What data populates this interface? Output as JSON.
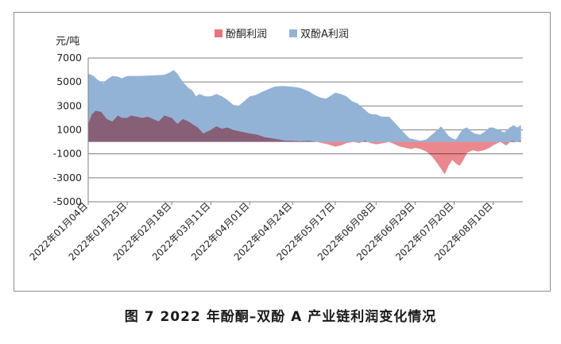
{
  "caption": "图 7  2022 年酚酮–双酚 A 产业链利润变化情况",
  "chart_data": {
    "type": "area",
    "ylabel": "元/吨",
    "ylim": [
      -5000,
      7000
    ],
    "yticks": [
      7000,
      5000,
      3000,
      1000,
      -1000,
      -3000,
      -5000
    ],
    "ytick_labels": [
      "7000",
      "5000",
      "3000",
      "1000",
      "-1000",
      "-3000",
      "-5000"
    ],
    "xlim": [
      "2022-01-04",
      "2022-08-26"
    ],
    "xticks": [
      "2022-01-04",
      "2022-01-25",
      "2022-02-18",
      "2022-03-11",
      "2022-04-01",
      "2022-04-24",
      "2022-05-17",
      "2022-06-08",
      "2022-06-29",
      "2022-07-20",
      "2022-08-10"
    ],
    "xtick_labels": [
      "2022年01月04日",
      "2022年01月25日",
      "2022年02月18日",
      "2022年03月11日",
      "2022年04月01日",
      "2022年04月24日",
      "2022年05月17日",
      "2022年06月08日",
      "2022年06月29日",
      "2022年07月20日",
      "2022年08月10日"
    ],
    "grid": true,
    "legend_position": "top-center",
    "series": [
      {
        "name": "双酚A利润",
        "color": "#93b3d6",
        "points": [
          [
            "2022-01-04",
            5700
          ],
          [
            "2022-01-07",
            5500
          ],
          [
            "2022-01-09",
            5200
          ],
          [
            "2022-01-12",
            4900
          ],
          [
            "2022-01-14",
            5200
          ],
          [
            "2022-01-17",
            5500
          ],
          [
            "2022-01-20",
            5450
          ],
          [
            "2022-01-22",
            5300
          ],
          [
            "2022-01-25",
            5500
          ],
          [
            "2022-02-01",
            5500
          ],
          [
            "2022-02-08",
            5550
          ],
          [
            "2022-02-14",
            5600
          ],
          [
            "2022-02-17",
            5800
          ],
          [
            "2022-02-19",
            6000
          ],
          [
            "2022-02-21",
            5700
          ],
          [
            "2022-02-24",
            5000
          ],
          [
            "2022-02-27",
            4500
          ],
          [
            "2022-03-01",
            4300
          ],
          [
            "2022-03-03",
            3800
          ],
          [
            "2022-03-05",
            4000
          ],
          [
            "2022-03-08",
            3800
          ],
          [
            "2022-03-11",
            3800
          ],
          [
            "2022-03-14",
            4000
          ],
          [
            "2022-03-17",
            3800
          ],
          [
            "2022-03-20",
            3500
          ],
          [
            "2022-03-23",
            3100
          ],
          [
            "2022-03-26",
            3000
          ],
          [
            "2022-03-29",
            3400
          ],
          [
            "2022-04-01",
            3800
          ],
          [
            "2022-04-04",
            3900
          ],
          [
            "2022-04-08",
            4200
          ],
          [
            "2022-04-11",
            4400
          ],
          [
            "2022-04-14",
            4600
          ],
          [
            "2022-04-17",
            4650
          ],
          [
            "2022-04-20",
            4650
          ],
          [
            "2022-04-24",
            4600
          ],
          [
            "2022-04-27",
            4550
          ],
          [
            "2022-04-30",
            4400
          ],
          [
            "2022-05-03",
            4200
          ],
          [
            "2022-05-06",
            3900
          ],
          [
            "2022-05-09",
            3700
          ],
          [
            "2022-05-12",
            3600
          ],
          [
            "2022-05-15",
            3900
          ],
          [
            "2022-05-17",
            4100
          ],
          [
            "2022-05-20",
            4000
          ],
          [
            "2022-05-23",
            3800
          ],
          [
            "2022-05-26",
            3400
          ],
          [
            "2022-05-29",
            3200
          ],
          [
            "2022-06-01",
            2800
          ],
          [
            "2022-06-04",
            2400
          ],
          [
            "2022-06-06",
            2300
          ],
          [
            "2022-06-08",
            2300
          ],
          [
            "2022-06-11",
            2100
          ],
          [
            "2022-06-15",
            2100
          ],
          [
            "2022-06-18",
            1600
          ],
          [
            "2022-06-21",
            1100
          ],
          [
            "2022-06-24",
            600
          ],
          [
            "2022-06-26",
            300
          ],
          [
            "2022-06-29",
            200
          ],
          [
            "2022-07-02",
            100
          ],
          [
            "2022-07-05",
            200
          ],
          [
            "2022-07-08",
            600
          ],
          [
            "2022-07-11",
            1000
          ],
          [
            "2022-07-13",
            1300
          ],
          [
            "2022-07-15",
            900
          ],
          [
            "2022-07-17",
            500
          ],
          [
            "2022-07-19",
            300
          ],
          [
            "2022-07-21",
            200
          ],
          [
            "2022-07-23",
            700
          ],
          [
            "2022-07-25",
            1100
          ],
          [
            "2022-07-27",
            1200
          ],
          [
            "2022-07-29",
            900
          ],
          [
            "2022-07-31",
            700
          ],
          [
            "2022-08-03",
            600
          ],
          [
            "2022-08-06",
            900
          ],
          [
            "2022-08-08",
            1200
          ],
          [
            "2022-08-10",
            1200
          ],
          [
            "2022-08-13",
            1000
          ],
          [
            "2022-08-16",
            800
          ],
          [
            "2022-08-19",
            1200
          ],
          [
            "2022-08-21",
            1400
          ],
          [
            "2022-08-23",
            1200
          ],
          [
            "2022-08-25",
            1400
          ]
        ]
      },
      {
        "name": "酚酮利润",
        "color": "#e8737a",
        "overlap_color": "#9a7a96",
        "points": [
          [
            "2022-01-04",
            1500
          ],
          [
            "2022-01-06",
            2300
          ],
          [
            "2022-01-08",
            2600
          ],
          [
            "2022-01-11",
            2500
          ],
          [
            "2022-01-14",
            1900
          ],
          [
            "2022-01-17",
            1700
          ],
          [
            "2022-01-20",
            2200
          ],
          [
            "2022-01-22",
            2000
          ],
          [
            "2022-01-25",
            2000
          ],
          [
            "2022-01-27",
            2200
          ],
          [
            "2022-01-30",
            2100
          ],
          [
            "2022-02-02",
            2000
          ],
          [
            "2022-02-05",
            2100
          ],
          [
            "2022-02-08",
            1900
          ],
          [
            "2022-02-11",
            1700
          ],
          [
            "2022-02-14",
            2200
          ],
          [
            "2022-02-18",
            2000
          ],
          [
            "2022-02-21",
            1500
          ],
          [
            "2022-02-24",
            1900
          ],
          [
            "2022-02-27",
            1700
          ],
          [
            "2022-03-01",
            1500
          ],
          [
            "2022-03-04",
            1200
          ],
          [
            "2022-03-07",
            700
          ],
          [
            "2022-03-11",
            1000
          ],
          [
            "2022-03-14",
            1300
          ],
          [
            "2022-03-17",
            1100
          ],
          [
            "2022-03-20",
            1200
          ],
          [
            "2022-03-23",
            1000
          ],
          [
            "2022-03-26",
            900
          ],
          [
            "2022-03-29",
            800
          ],
          [
            "2022-04-01",
            700
          ],
          [
            "2022-04-05",
            600
          ],
          [
            "2022-04-09",
            400
          ],
          [
            "2022-04-13",
            300
          ],
          [
            "2022-04-17",
            200
          ],
          [
            "2022-04-20",
            100
          ],
          [
            "2022-04-24",
            100
          ],
          [
            "2022-04-28",
            50
          ],
          [
            "2022-05-03",
            100
          ],
          [
            "2022-05-07",
            0
          ],
          [
            "2022-05-10",
            -100
          ],
          [
            "2022-05-13",
            -200
          ],
          [
            "2022-05-17",
            -400
          ],
          [
            "2022-05-20",
            -300
          ],
          [
            "2022-05-23",
            -100
          ],
          [
            "2022-05-27",
            0
          ],
          [
            "2022-05-30",
            -100
          ],
          [
            "2022-06-02",
            100
          ],
          [
            "2022-06-05",
            -100
          ],
          [
            "2022-06-08",
            -200
          ],
          [
            "2022-06-12",
            -100
          ],
          [
            "2022-06-15",
            0
          ],
          [
            "2022-06-18",
            -200
          ],
          [
            "2022-06-21",
            -400
          ],
          [
            "2022-06-24",
            -500
          ],
          [
            "2022-06-27",
            -600
          ],
          [
            "2022-06-29",
            -500
          ],
          [
            "2022-07-02",
            -600
          ],
          [
            "2022-07-05",
            -800
          ],
          [
            "2022-07-08",
            -1200
          ],
          [
            "2022-07-11",
            -1800
          ],
          [
            "2022-07-14",
            -2500
          ],
          [
            "2022-07-15",
            -2700
          ],
          [
            "2022-07-17",
            -2000
          ],
          [
            "2022-07-19",
            -1500
          ],
          [
            "2022-07-21",
            -1800
          ],
          [
            "2022-07-23",
            -2000
          ],
          [
            "2022-07-25",
            -1500
          ],
          [
            "2022-07-27",
            -900
          ],
          [
            "2022-07-30",
            -700
          ],
          [
            "2022-08-02",
            -800
          ],
          [
            "2022-08-05",
            -700
          ],
          [
            "2022-08-08",
            -500
          ],
          [
            "2022-08-11",
            -200
          ],
          [
            "2022-08-14",
            0
          ],
          [
            "2022-08-17",
            -300
          ],
          [
            "2022-08-20",
            100
          ],
          [
            "2022-08-23",
            0
          ],
          [
            "2022-08-25",
            100
          ]
        ]
      }
    ],
    "legend": [
      {
        "name": "酚酮利润",
        "color": "#e8737a"
      },
      {
        "name": "双酚A利润",
        "color": "#93b3d6"
      }
    ]
  }
}
